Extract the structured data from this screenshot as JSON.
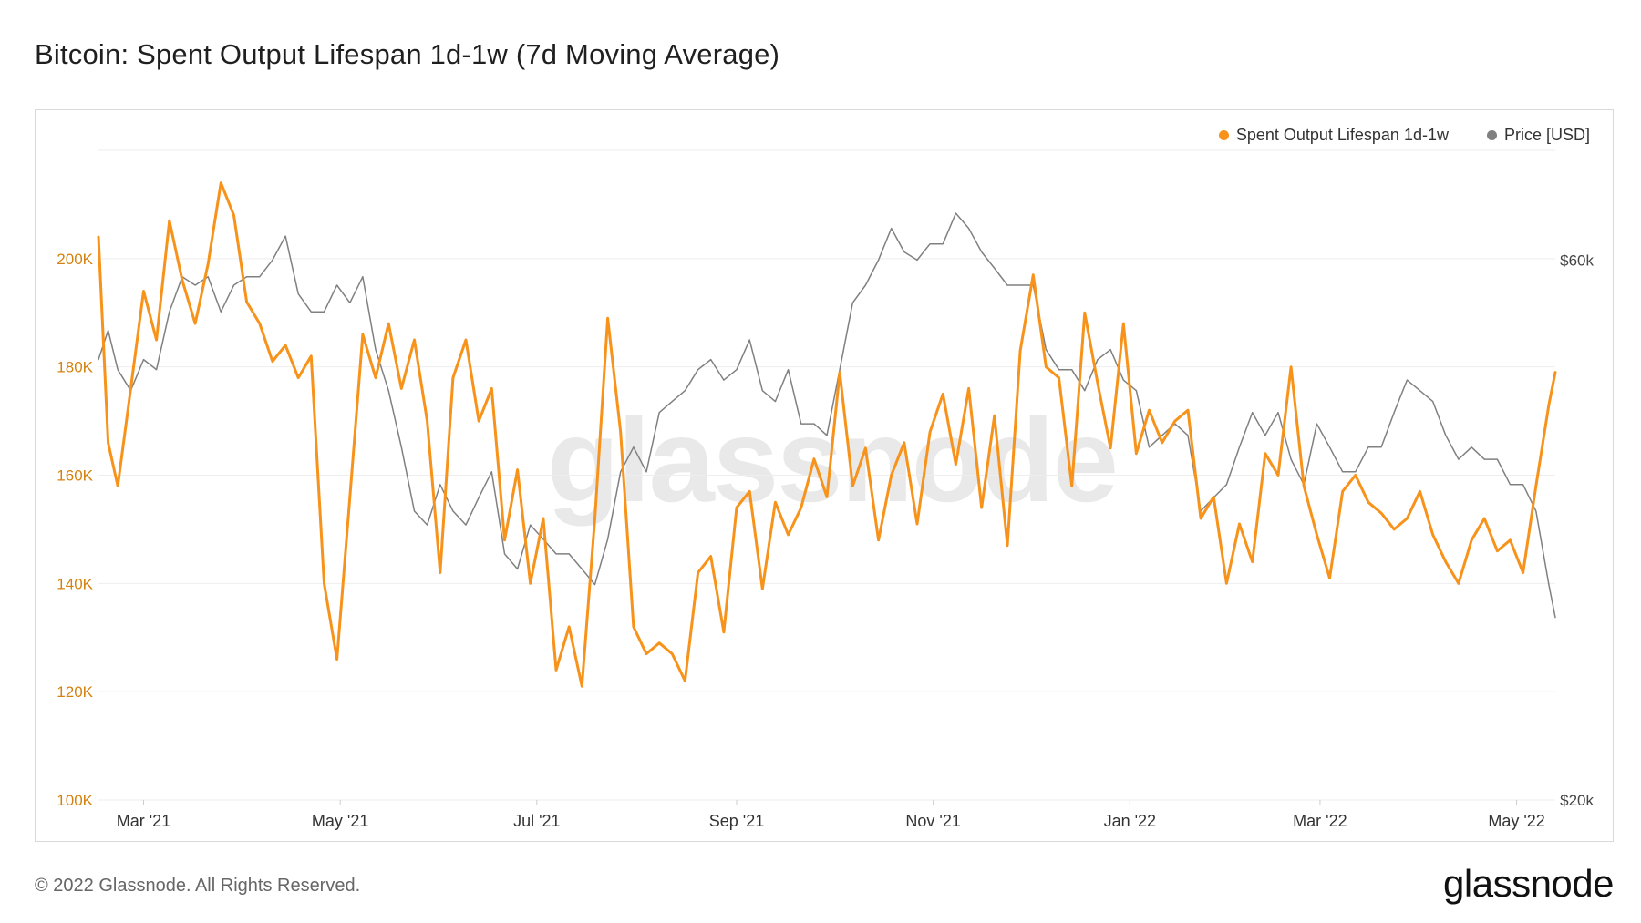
{
  "title": "Bitcoin: Spent Output Lifespan 1d-1w (7d Moving Average)",
  "footer": "© 2022 Glassnode. All Rights Reserved.",
  "logo": "glassnode",
  "watermark": "glassnode",
  "colors": {
    "series1": "#f7931a",
    "series2": "#808080",
    "grid": "#eeeeee",
    "axis_left": "#d4820f"
  },
  "chart_data": {
    "type": "line",
    "title": "Bitcoin: Spent Output Lifespan 1d-1w (7d Moving Average)",
    "xlabel": "",
    "ylabel": "",
    "x_range": [
      "2021-02-15",
      "2022-05-13"
    ],
    "x_ticks": [
      "Mar '21",
      "May '21",
      "Jul '21",
      "Sep '21",
      "Nov '21",
      "Jan '22",
      "Mar '22",
      "May '22"
    ],
    "y_left": {
      "ylim": [
        100000,
        220000
      ],
      "ticks": [
        "100K",
        "120K",
        "140K",
        "160K",
        "180K",
        "200K"
      ]
    },
    "y_right": {
      "scale": "log",
      "ylim": [
        20000,
        75000
      ],
      "ticks": [
        "$20k",
        "$60k"
      ]
    },
    "legend": {
      "position": "top-right",
      "entries": [
        "Spent Output Lifespan 1d-1w",
        "Price [USD]"
      ]
    },
    "grid": true,
    "series": [
      {
        "name": "Spent Output Lifespan 1d-1w",
        "axis": "left",
        "dates": [
          "2021-02-15",
          "2021-02-18",
          "2021-02-21",
          "2021-02-25",
          "2021-03-01",
          "2021-03-05",
          "2021-03-09",
          "2021-03-13",
          "2021-03-17",
          "2021-03-21",
          "2021-03-25",
          "2021-03-29",
          "2021-04-02",
          "2021-04-06",
          "2021-04-10",
          "2021-04-14",
          "2021-04-18",
          "2021-04-22",
          "2021-04-26",
          "2021-04-30",
          "2021-05-04",
          "2021-05-08",
          "2021-05-12",
          "2021-05-16",
          "2021-05-20",
          "2021-05-24",
          "2021-05-28",
          "2021-06-01",
          "2021-06-05",
          "2021-06-09",
          "2021-06-13",
          "2021-06-17",
          "2021-06-21",
          "2021-06-25",
          "2021-06-29",
          "2021-07-03",
          "2021-07-07",
          "2021-07-11",
          "2021-07-15",
          "2021-07-19",
          "2021-07-23",
          "2021-07-27",
          "2021-07-31",
          "2021-08-04",
          "2021-08-08",
          "2021-08-12",
          "2021-08-16",
          "2021-08-20",
          "2021-08-24",
          "2021-08-28",
          "2021-09-01",
          "2021-09-05",
          "2021-09-09",
          "2021-09-13",
          "2021-09-17",
          "2021-09-21",
          "2021-09-25",
          "2021-09-29",
          "2021-10-03",
          "2021-10-07",
          "2021-10-11",
          "2021-10-15",
          "2021-10-19",
          "2021-10-23",
          "2021-10-27",
          "2021-10-31",
          "2021-11-04",
          "2021-11-08",
          "2021-11-12",
          "2021-11-16",
          "2021-11-20",
          "2021-11-24",
          "2021-11-28",
          "2021-12-02",
          "2021-12-06",
          "2021-12-10",
          "2021-12-14",
          "2021-12-18",
          "2021-12-22",
          "2021-12-26",
          "2021-12-30",
          "2022-01-03",
          "2022-01-07",
          "2022-01-11",
          "2022-01-15",
          "2022-01-19",
          "2022-01-23",
          "2022-01-27",
          "2022-01-31",
          "2022-02-04",
          "2022-02-08",
          "2022-02-12",
          "2022-02-16",
          "2022-02-20",
          "2022-02-24",
          "2022-02-28",
          "2022-03-04",
          "2022-03-08",
          "2022-03-12",
          "2022-03-16",
          "2022-03-20",
          "2022-03-24",
          "2022-03-28",
          "2022-04-01",
          "2022-04-05",
          "2022-04-09",
          "2022-04-13",
          "2022-04-17",
          "2022-04-21",
          "2022-04-25",
          "2022-04-29",
          "2022-05-03",
          "2022-05-07",
          "2022-05-11",
          "2022-05-13"
        ],
        "values": [
          204000,
          166000,
          158000,
          176000,
          194000,
          185000,
          207000,
          196000,
          188000,
          199000,
          214000,
          208000,
          192000,
          188000,
          181000,
          184000,
          178000,
          182000,
          140000,
          126000,
          156000,
          186000,
          178000,
          188000,
          176000,
          185000,
          170000,
          142000,
          178000,
          185000,
          170000,
          176000,
          148000,
          161000,
          140000,
          152000,
          124000,
          132000,
          121000,
          152000,
          189000,
          168000,
          132000,
          127000,
          129000,
          127000,
          122000,
          142000,
          145000,
          131000,
          154000,
          157000,
          139000,
          155000,
          149000,
          154000,
          163000,
          156000,
          179000,
          158000,
          165000,
          148000,
          160000,
          166000,
          151000,
          168000,
          175000,
          162000,
          176000,
          154000,
          171000,
          147000,
          183000,
          197000,
          180000,
          178000,
          158000,
          190000,
          177000,
          165000,
          188000,
          164000,
          172000,
          166000,
          170000,
          172000,
          152000,
          156000,
          140000,
          151000,
          144000,
          164000,
          160000,
          180000,
          158000,
          149000,
          141000,
          157000,
          160000,
          155000,
          153000,
          150000,
          152000,
          157000,
          149000,
          144000,
          140000,
          148000,
          152000,
          146000,
          148000,
          142000,
          158000,
          173000,
          179000
        ]
      },
      {
        "name": "Price [USD]",
        "axis": "right",
        "dates": [
          "2021-02-15",
          "2021-02-18",
          "2021-02-21",
          "2021-02-25",
          "2021-03-01",
          "2021-03-05",
          "2021-03-09",
          "2021-03-13",
          "2021-03-17",
          "2021-03-21",
          "2021-03-25",
          "2021-03-29",
          "2021-04-02",
          "2021-04-06",
          "2021-04-10",
          "2021-04-14",
          "2021-04-18",
          "2021-04-22",
          "2021-04-26",
          "2021-04-30",
          "2021-05-04",
          "2021-05-08",
          "2021-05-12",
          "2021-05-16",
          "2021-05-20",
          "2021-05-24",
          "2021-05-28",
          "2021-06-01",
          "2021-06-05",
          "2021-06-09",
          "2021-06-13",
          "2021-06-17",
          "2021-06-21",
          "2021-06-25",
          "2021-06-29",
          "2021-07-03",
          "2021-07-07",
          "2021-07-11",
          "2021-07-15",
          "2021-07-19",
          "2021-07-23",
          "2021-07-27",
          "2021-07-31",
          "2021-08-04",
          "2021-08-08",
          "2021-08-12",
          "2021-08-16",
          "2021-08-20",
          "2021-08-24",
          "2021-08-28",
          "2021-09-01",
          "2021-09-05",
          "2021-09-09",
          "2021-09-13",
          "2021-09-17",
          "2021-09-21",
          "2021-09-25",
          "2021-09-29",
          "2021-10-03",
          "2021-10-07",
          "2021-10-11",
          "2021-10-15",
          "2021-10-19",
          "2021-10-23",
          "2021-10-27",
          "2021-10-31",
          "2021-11-04",
          "2021-11-08",
          "2021-11-12",
          "2021-11-16",
          "2021-11-20",
          "2021-11-24",
          "2021-11-28",
          "2021-12-02",
          "2021-12-06",
          "2021-12-10",
          "2021-12-14",
          "2021-12-18",
          "2021-12-22",
          "2021-12-26",
          "2021-12-30",
          "2022-01-03",
          "2022-01-07",
          "2022-01-11",
          "2022-01-15",
          "2022-01-19",
          "2022-01-23",
          "2022-01-27",
          "2022-01-31",
          "2022-02-04",
          "2022-02-08",
          "2022-02-12",
          "2022-02-16",
          "2022-02-20",
          "2022-02-24",
          "2022-02-28",
          "2022-03-04",
          "2022-03-08",
          "2022-03-12",
          "2022-03-16",
          "2022-03-20",
          "2022-03-24",
          "2022-03-28",
          "2022-04-01",
          "2022-04-05",
          "2022-04-09",
          "2022-04-13",
          "2022-04-17",
          "2022-04-21",
          "2022-04-25",
          "2022-04-29",
          "2022-05-03",
          "2022-05-07",
          "2022-05-11",
          "2022-05-13"
        ],
        "values": [
          49000,
          52000,
          48000,
          46000,
          49000,
          48000,
          54000,
          58000,
          57000,
          58000,
          54000,
          57000,
          58000,
          58000,
          60000,
          63000,
          56000,
          54000,
          54000,
          57000,
          55000,
          58000,
          50000,
          46000,
          41000,
          36000,
          35000,
          38000,
          36000,
          35000,
          37000,
          39000,
          33000,
          32000,
          35000,
          34000,
          33000,
          33000,
          32000,
          31000,
          34000,
          39000,
          41000,
          39000,
          44000,
          45000,
          46000,
          48000,
          49000,
          47000,
          48000,
          51000,
          46000,
          45000,
          48000,
          43000,
          43000,
          42000,
          48000,
          55000,
          57000,
          60000,
          64000,
          61000,
          60000,
          62000,
          62000,
          66000,
          64000,
          61000,
          59000,
          57000,
          57000,
          57000,
          50000,
          48000,
          48000,
          46000,
          49000,
          50000,
          47000,
          46000,
          41000,
          42000,
          43000,
          42000,
          36000,
          37000,
          38000,
          41000,
          44000,
          42000,
          44000,
          40000,
          38000,
          43000,
          41000,
          39000,
          39000,
          41000,
          41000,
          44000,
          47000,
          46000,
          45000,
          42000,
          40000,
          41000,
          40000,
          40000,
          38000,
          38000,
          36000,
          31000,
          29000
        ]
      }
    ]
  }
}
